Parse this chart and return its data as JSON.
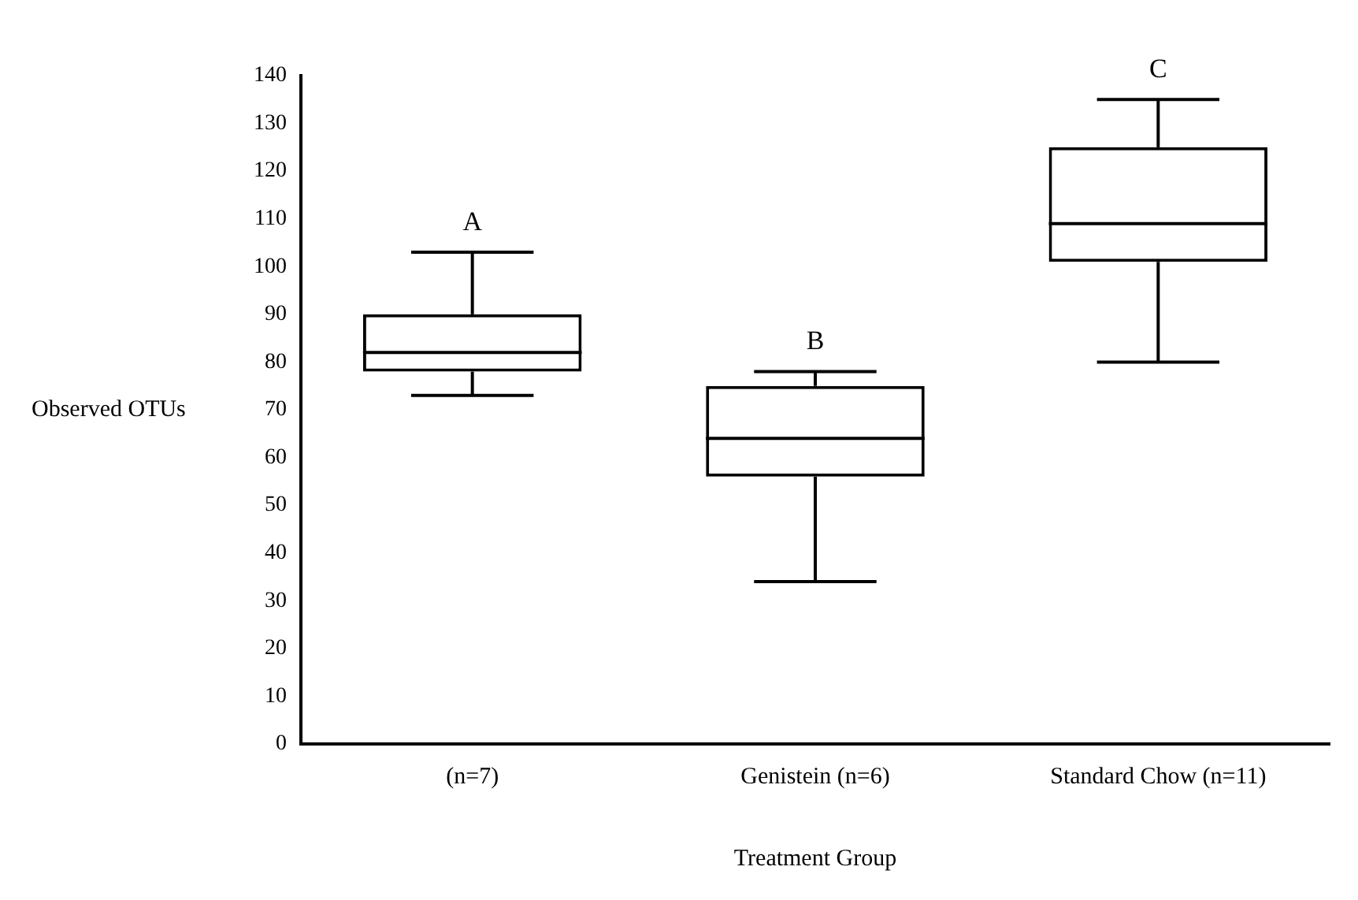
{
  "chart_data": {
    "type": "box",
    "xlabel": "Treatment Group",
    "ylabel": "Observed OTUs",
    "categories": [
      "(n=7)",
      "Genistein (n=6)",
      "Standard Chow (n=11)"
    ],
    "boxes": [
      {
        "low": 73,
        "q1": 78,
        "median": 82,
        "q3": 90,
        "high": 103
      },
      {
        "low": 34,
        "q1": 56,
        "median": 64,
        "q3": 75,
        "high": 78
      },
      {
        "low": 80,
        "q1": 101,
        "median": 109,
        "q3": 125,
        "high": 135
      }
    ],
    "color": "#000000",
    "ylim": [
      0,
      140
    ],
    "yticks": [
      0,
      10,
      20,
      30,
      40,
      50,
      60,
      70,
      80,
      90,
      100,
      110,
      120,
      130,
      140
    ],
    "grid": false,
    "legend": false,
    "annotations": [
      "A",
      "B",
      "C"
    ]
  }
}
